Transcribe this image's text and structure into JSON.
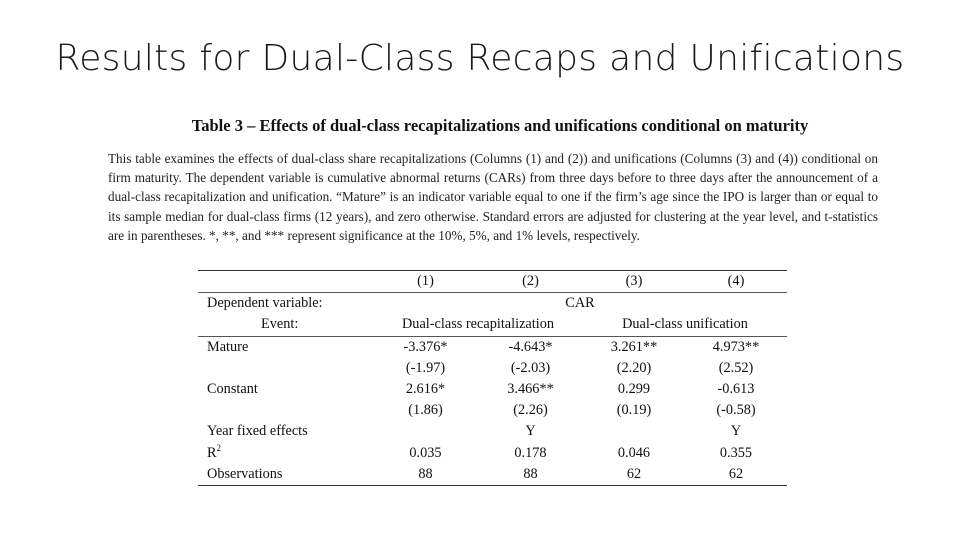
{
  "slide": {
    "title": "Results for Dual-Class Recaps and Unifications"
  },
  "table_caption": "Table 3 – Effects of dual-class recapitalizations and unifications conditional on maturity",
  "description": "This table examines the effects of dual-class share recapitalizations (Columns (1) and (2)) and unifications (Columns (3) and (4)) conditional on firm maturity. The dependent variable is cumulative abnormal returns (CARs) from three days before to three days after the announcement of a dual-class recapitalization and unification. “Mature” is an indicator variable equal to one if the firm’s age since the IPO is larger than or equal to its sample median for dual-class firms (12 years), and zero otherwise. Standard errors are adjusted for clustering at the year level, and t-statistics are in parentheses. *, **, and *** represent significance at the 10%, 5%, and 1% levels, respectively.",
  "table": {
    "columns": [
      "(1)",
      "(2)",
      "(3)",
      "(4)"
    ],
    "dependent_variable_label": "Dependent variable:",
    "dependent_variable": "CAR",
    "event_label": "Event:",
    "event_groups": [
      "Dual-class recapitalization",
      "Dual-class unification"
    ],
    "rows": {
      "mature": {
        "label": "Mature",
        "values": [
          "-3.376*",
          "-4.643*",
          "3.261**",
          "4.973**"
        ],
        "tstats": [
          "(-1.97)",
          "(-2.03)",
          "(2.20)",
          "(2.52)"
        ]
      },
      "constant": {
        "label": "Constant",
        "values": [
          "2.616*",
          "3.466**",
          "0.299",
          "-0.613"
        ],
        "tstats": [
          "(1.86)",
          "(2.26)",
          "(0.19)",
          "(-0.58)"
        ]
      },
      "year_fe": {
        "label": "Year fixed effects",
        "values": [
          "",
          "Y",
          "",
          "Y"
        ]
      },
      "r2": {
        "label": "R",
        "label_sup": "2",
        "values": [
          "0.035",
          "0.178",
          "0.046",
          "0.355"
        ]
      },
      "observations": {
        "label": "Observations",
        "values": [
          "88",
          "88",
          "62",
          "62"
        ]
      }
    }
  }
}
